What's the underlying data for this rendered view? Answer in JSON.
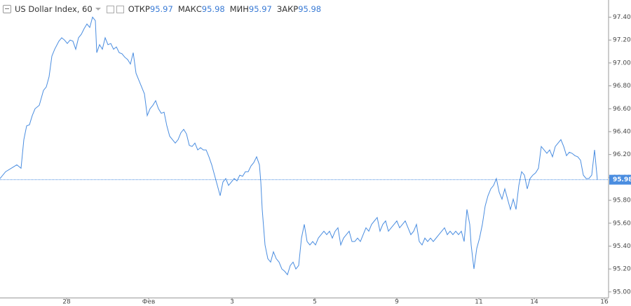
{
  "header": {
    "title": "US Dollar Index, 60",
    "fields": [
      {
        "label": "ОТКР",
        "value": 95.97
      },
      {
        "label": "МАКС",
        "value": 95.98
      },
      {
        "label": "МИН",
        "value": 95.97
      },
      {
        "label": "ЗАКР",
        "value": 95.98
      }
    ]
  },
  "chart_data": {
    "type": "line",
    "color": "#4a8de0",
    "x": [
      0,
      8,
      16,
      24,
      30,
      34,
      38,
      42,
      46,
      50,
      56,
      62,
      66,
      70,
      74,
      78,
      84,
      88,
      92,
      96,
      100,
      104,
      108,
      112,
      116,
      120,
      124,
      128,
      132,
      136,
      138,
      142,
      146,
      150,
      154,
      158,
      162,
      166,
      170,
      174,
      178,
      182,
      186,
      190,
      194,
      198,
      202,
      206,
      210,
      214,
      218,
      222,
      226,
      230,
      234,
      238,
      242,
      246,
      250,
      254,
      258,
      262,
      266,
      270,
      274,
      278,
      282,
      286,
      290,
      294,
      298,
      302,
      306,
      310,
      314,
      318,
      322,
      326,
      330,
      334,
      338,
      342,
      346,
      350,
      354,
      358,
      362,
      366,
      370,
      372,
      374,
      378,
      382,
      386,
      390,
      394,
      398,
      402,
      406,
      410,
      414,
      418,
      422,
      426,
      430,
      434,
      438,
      442,
      446,
      450,
      454,
      458,
      462,
      466,
      470,
      474,
      478,
      482,
      486,
      490,
      494,
      498,
      502,
      506,
      510,
      514,
      518,
      522,
      526,
      530,
      534,
      538,
      542,
      546,
      550,
      554,
      558,
      562,
      566,
      570,
      574,
      578,
      582,
      586,
      590,
      594,
      598,
      602,
      606,
      610,
      614,
      618,
      622,
      626,
      630,
      634,
      638,
      642,
      646,
      650,
      654,
      658,
      662,
      666,
      670,
      672,
      676,
      680,
      684,
      688,
      692,
      696,
      700,
      704,
      708,
      712,
      716,
      720,
      724,
      728,
      732,
      736,
      740,
      744,
      748,
      752,
      756,
      760,
      764,
      768,
      772,
      776,
      780,
      784,
      788,
      792,
      796,
      800,
      804,
      808,
      812,
      816,
      820,
      824,
      828,
      832,
      836,
      840,
      844,
      848,
      852
    ],
    "values": [
      95.99,
      96.05,
      96.08,
      96.11,
      96.08,
      96.33,
      96.45,
      96.46,
      96.54,
      96.6,
      96.63,
      96.76,
      96.79,
      96.88,
      97.06,
      97.12,
      97.19,
      97.22,
      97.2,
      97.17,
      97.2,
      97.19,
      97.12,
      97.22,
      97.25,
      97.3,
      97.34,
      97.31,
      97.4,
      97.37,
      97.09,
      97.16,
      97.12,
      97.22,
      97.16,
      97.17,
      97.12,
      97.14,
      97.09,
      97.08,
      97.05,
      97.03,
      96.99,
      97.09,
      96.91,
      96.85,
      96.79,
      96.73,
      96.54,
      96.6,
      96.63,
      96.67,
      96.6,
      96.56,
      96.57,
      96.45,
      96.36,
      96.33,
      96.3,
      96.33,
      96.39,
      96.42,
      96.38,
      96.28,
      96.27,
      96.3,
      96.24,
      96.26,
      96.24,
      96.24,
      96.18,
      96.11,
      96.02,
      95.93,
      95.84,
      95.96,
      95.99,
      95.93,
      95.96,
      95.99,
      95.97,
      96.02,
      96.01,
      96.05,
      96.05,
      96.1,
      96.13,
      96.18,
      96.11,
      95.96,
      95.72,
      95.41,
      95.29,
      95.26,
      95.35,
      95.29,
      95.26,
      95.2,
      95.18,
      95.15,
      95.23,
      95.26,
      95.2,
      95.23,
      95.47,
      95.59,
      95.44,
      95.41,
      95.44,
      95.41,
      95.47,
      95.5,
      95.53,
      95.5,
      95.53,
      95.47,
      95.53,
      95.56,
      95.41,
      95.47,
      95.5,
      95.53,
      95.44,
      95.44,
      95.47,
      95.44,
      95.5,
      95.56,
      95.53,
      95.59,
      95.62,
      95.65,
      95.53,
      95.59,
      95.62,
      95.53,
      95.56,
      95.59,
      95.62,
      95.56,
      95.59,
      95.62,
      95.56,
      95.5,
      95.53,
      95.59,
      95.44,
      95.41,
      95.47,
      95.44,
      95.47,
      95.44,
      95.47,
      95.5,
      95.53,
      95.56,
      95.5,
      95.53,
      95.5,
      95.53,
      95.5,
      95.53,
      95.44,
      95.72,
      95.59,
      95.41,
      95.2,
      95.38,
      95.47,
      95.59,
      95.75,
      95.84,
      95.9,
      95.93,
      95.99,
      95.87,
      95.81,
      95.9,
      95.81,
      95.72,
      95.81,
      95.72,
      95.93,
      96.05,
      96.02,
      95.9,
      95.99,
      96.02,
      96.04,
      96.08,
      96.27,
      96.24,
      96.21,
      96.24,
      96.18,
      96.27,
      96.3,
      96.33,
      96.27,
      96.19,
      96.22,
      96.21,
      96.19,
      96.18,
      96.15,
      96.02,
      95.99,
      95.99,
      96.02,
      96.24,
      95.98
    ],
    "last_price": 95.98,
    "xlim": [
      0,
      868
    ],
    "xticks": [
      {
        "value": 95,
        "label": "28"
      },
      {
        "value": 212,
        "label": "Фев"
      },
      {
        "value": 331,
        "label": "3"
      },
      {
        "value": 449,
        "label": "5"
      },
      {
        "value": 566,
        "label": "9"
      },
      {
        "value": 683,
        "label": "11"
      },
      {
        "value": 762,
        "label": "14"
      },
      {
        "value": 862,
        "label": "16"
      }
    ],
    "ylim": [
      94.95,
      97.55
    ],
    "yticks": [
      {
        "value": 95.0,
        "label": "95.00"
      },
      {
        "value": 95.2,
        "label": "95.20"
      },
      {
        "value": 95.4,
        "label": "95.40"
      },
      {
        "value": 95.6,
        "label": "95.60"
      },
      {
        "value": 95.8,
        "label": "95.80"
      },
      {
        "value": 96.0,
        "label": "96.00"
      },
      {
        "value": 96.2,
        "label": "96.20"
      },
      {
        "value": 96.4,
        "label": "96.40"
      },
      {
        "value": 96.6,
        "label": "96.60"
      },
      {
        "value": 96.8,
        "label": "96.80"
      },
      {
        "value": 97.0,
        "label": "97.00"
      },
      {
        "value": 97.2,
        "label": "97.20"
      },
      {
        "value": 97.4,
        "label": "97.40"
      }
    ],
    "grid": false
  }
}
